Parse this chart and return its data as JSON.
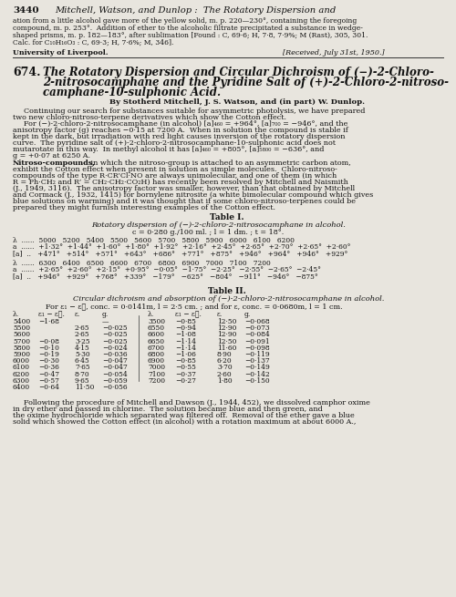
{
  "bg_color": "#e8e5de",
  "text_color": "#1a1a1a",
  "page_number": "3440",
  "header_italic": "Mitchell, Watson, and Dunlop :  The Rotatory Dispersion and",
  "header_text1": "ation from a little alcohol gave more of the yellow solid, m. p. 220—230°, containing the foregoing",
  "header_text2": "compound, m. p. 253°.  Addition of ether to the alcoholic filtrate precipitated a substance in wedge-",
  "header_text3": "shaped prisms, m. p. 182—183°, after sublimation [Found : C, 69·6; H, 7·8, 7·9%; M (Rast), 305, 301.",
  "header_text4": "Calc. for C₁₀H₁₆O₃ : C, 69·3; H, 7·6%; M, 346].",
  "univ_left": "University of Liverpool.",
  "univ_right": "[Received, July 31st, 1950.]",
  "title_num": "674.",
  "byline": "By Stotherd Mitchell, J. S. Watson, and (in part) W. Dunlop.",
  "table1_title": "Table I.",
  "table1_subtitle": "Rotatory dispersion of (−)-2-chloro-2-nitrosocamphane in alcohol.",
  "table1_cond": "c = 0·280 g./100 ml. ; l = 1 dm. ; t = 18°.",
  "table2_title": "Table II.",
  "table2_subtitle": "Circular dichroism and absorption of (−)-2-chloro-2-nitrosocamphane in alcohol.",
  "table2_cond": "For ε₁ − ε⁲, conc. = 0·0141m, l = 2·5 cm. ; and for ε, conc. = 0·0680m, l = 1 cm."
}
